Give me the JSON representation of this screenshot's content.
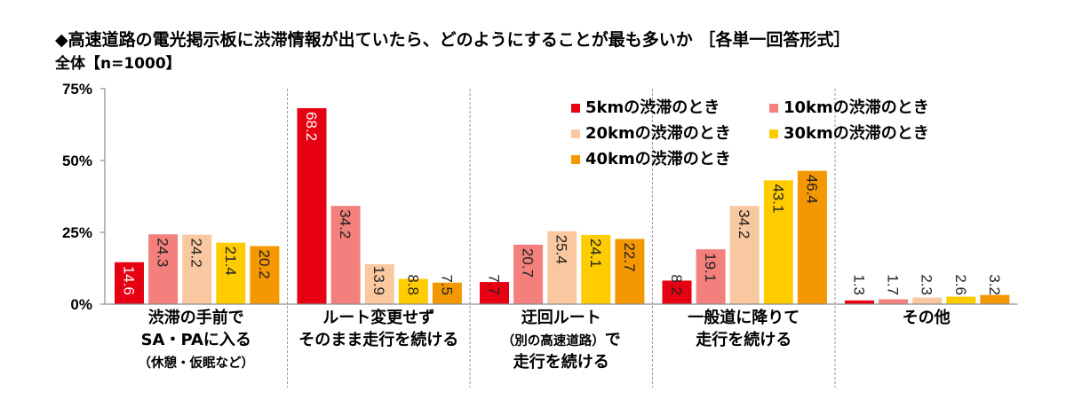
{
  "chart_data": {
    "type": "bar",
    "title": "◆高速道路の電光掲示板に渋滞情報が出ていたら、どのようにすることが最も多いか ［各単一回答形式］",
    "subtitle": "全体【n=1000】",
    "categories": [
      [
        "渋滞の手前で",
        "SA・PAに入る",
        "（休憩・仮眠など）"
      ],
      [
        "ルート変更せず",
        "そのまま走行を続ける"
      ],
      [
        "迂回ルート",
        "（別の高速道路）で",
        "走行を続ける"
      ],
      [
        "一般道に降りて",
        "走行を続ける"
      ],
      [
        "その他"
      ]
    ],
    "series": [
      {
        "name": "5kmの渋滞のとき",
        "color": "#e60012",
        "label_color": "#ffffff",
        "values": [
          14.6,
          68.2,
          7.7,
          8.2,
          1.3
        ]
      },
      {
        "name": "10kmの渋滞のとき",
        "color": "#f3807d",
        "label_color": "#222222",
        "values": [
          24.3,
          34.2,
          20.7,
          19.1,
          1.7
        ]
      },
      {
        "name": "20kmの渋滞のとき",
        "color": "#fac8a0",
        "label_color": "#222222",
        "values": [
          24.2,
          13.9,
          25.4,
          34.2,
          2.3
        ]
      },
      {
        "name": "30kmの渋滞のとき",
        "color": "#ffcc00",
        "label_color": "#222222",
        "values": [
          21.4,
          8.8,
          24.1,
          43.1,
          2.6
        ]
      },
      {
        "name": "40kmの渋滞のとき",
        "color": "#f39800",
        "label_color": "#222222",
        "values": [
          20.2,
          7.5,
          22.7,
          46.4,
          3.2
        ]
      }
    ],
    "ylim": [
      0,
      75
    ],
    "yticks": [
      0,
      25,
      50,
      75
    ],
    "ytick_labels": [
      "0%",
      "25%",
      "50%",
      "75%"
    ],
    "grid": false,
    "legend_position": "top-right",
    "data_labels": true,
    "default_label_color": "#222222"
  }
}
